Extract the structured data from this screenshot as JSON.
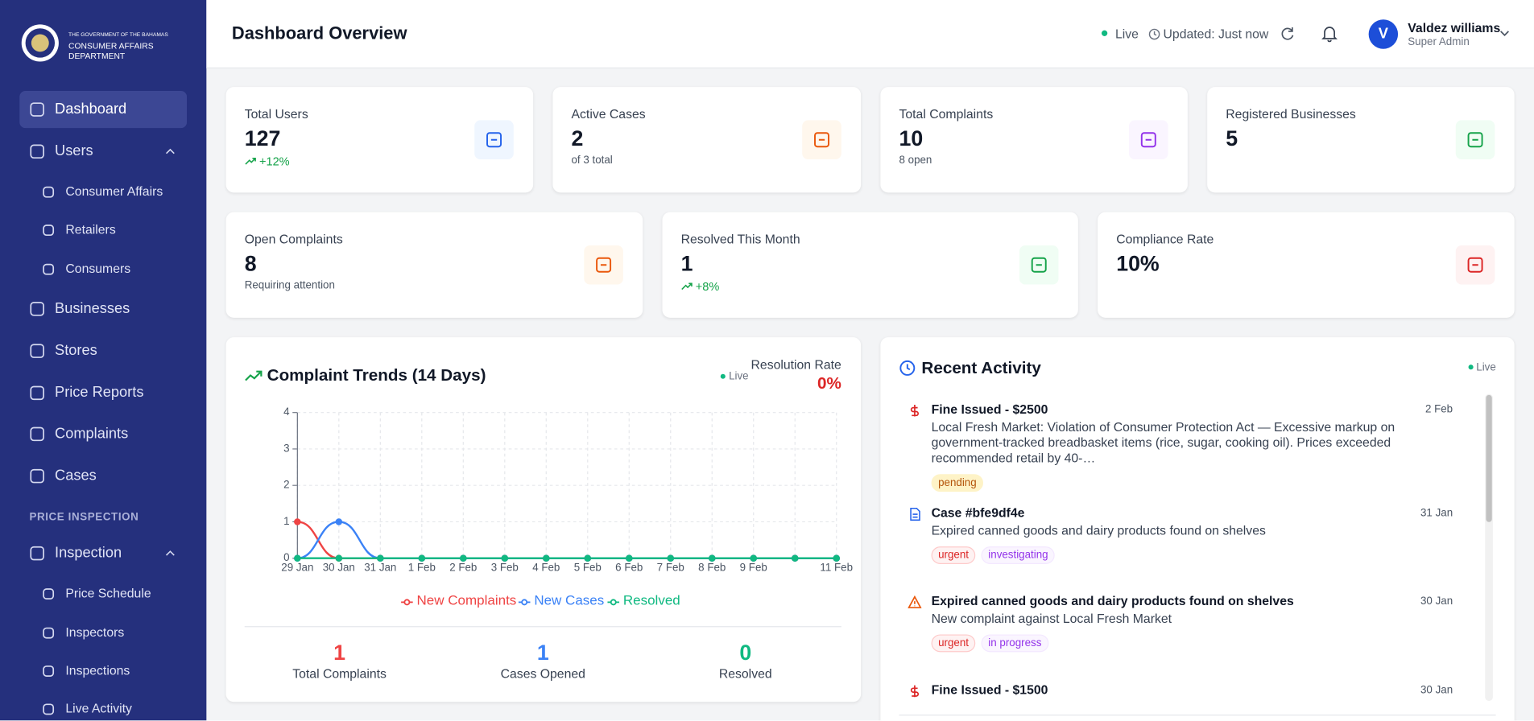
{
  "sidebar": {
    "org_line1": "THE GOVERNMENT OF THE BAHAMAS",
    "org_line2": "CONSUMER AFFAIRS DEPARTMENT",
    "nav_main": [
      "Dashboard",
      "Users",
      "Consumer Affairs",
      "Retailers",
      "Consumers",
      "Businesses",
      "Stores",
      "Price Reports",
      "Complaints",
      "Cases"
    ],
    "section_title": "PRICE INSPECTION",
    "nav_inspection": [
      "Inspection",
      "Price Schedule",
      "Inspectors",
      "Inspections",
      "Live Activity"
    ]
  },
  "header": {
    "title": "Dashboard Overview",
    "status": "Live",
    "updated": "Updated: Just now",
    "avatar": "V",
    "user_name": "Valdez williams",
    "user_role": "Super Admin"
  },
  "stats": [
    {
      "label": "Total Users",
      "value": "127",
      "note": "+12%"
    },
    {
      "label": "Active Cases",
      "value": "2",
      "note": "of 3 total"
    },
    {
      "label": "Total Complaints",
      "value": "10",
      "note": "8 open"
    },
    {
      "label": "Registered Businesses",
      "value": "5"
    },
    {
      "label": "Open Complaints",
      "value": "8",
      "note": "Requiring attention"
    },
    {
      "label": "Resolved This Month",
      "value": "1",
      "note": "+8%"
    },
    {
      "label": "Compliance Rate",
      "value": "10%"
    }
  ],
  "trend_card": {
    "live": "Live",
    "resolution_label": "Resolution Rate",
    "resolution_value": "0%",
    "summary": [
      {
        "value": 1,
        "label": "Total Complaints"
      },
      {
        "value": 1,
        "label": "Cases Opened"
      },
      {
        "value": 0,
        "label": "Resolved"
      }
    ]
  },
  "chart_data": {
    "type": "line",
    "title": "Complaint Trends (14 Days)",
    "categories": [
      "29 Jan",
      "30 Jan",
      "31 Jan",
      "1 Feb",
      "2 Feb",
      "3 Feb",
      "4 Feb",
      "5 Feb",
      "6 Feb",
      "7 Feb",
      "8 Feb",
      "9 Feb",
      null,
      "11 Feb"
    ],
    "series": [
      {
        "name": "New Complaints",
        "color": "#ef4444",
        "values": [
          1,
          0,
          0,
          0,
          0,
          0,
          0,
          0,
          0,
          0,
          0,
          0,
          0,
          0
        ]
      },
      {
        "name": "New Cases",
        "color": "#3b82f6",
        "values": [
          0,
          1,
          0,
          0,
          0,
          0,
          0,
          0,
          0,
          0,
          0,
          0,
          0,
          0
        ]
      },
      {
        "name": "Resolved",
        "color": "#10b981",
        "values": [
          0,
          0,
          0,
          0,
          0,
          0,
          0,
          0,
          0,
          0,
          0,
          0,
          0,
          0
        ]
      }
    ],
    "ylim": [
      0,
      4
    ],
    "yticks": [
      0,
      1,
      2,
      3,
      4
    ],
    "grid": true
  },
  "activity": {
    "title": "Recent Activity",
    "live": "Live",
    "items": [
      {
        "title": "Fine Issued - $2500",
        "date": "2 Feb",
        "text": "Local Fresh Market: Violation of Consumer Protection Act — Excessive markup on government-tracked breadbasket items (rice, sugar, cooking oil). Prices exceeded recommended retail by 40-…",
        "tags": [
          "pending"
        ]
      },
      {
        "title": "Case #bfe9df4e",
        "date": "31 Jan",
        "text": "Expired canned goods and dairy products found on shelves",
        "tags": [
          "urgent",
          "investigating"
        ]
      },
      {
        "title": "Expired canned goods and dairy products found on shelves",
        "date": "30 Jan",
        "text": "New complaint against Local Fresh Market",
        "tags": [
          "urgent",
          "in progress"
        ]
      },
      {
        "title": "Fine Issued - $1500",
        "date": "30 Jan"
      }
    ]
  }
}
